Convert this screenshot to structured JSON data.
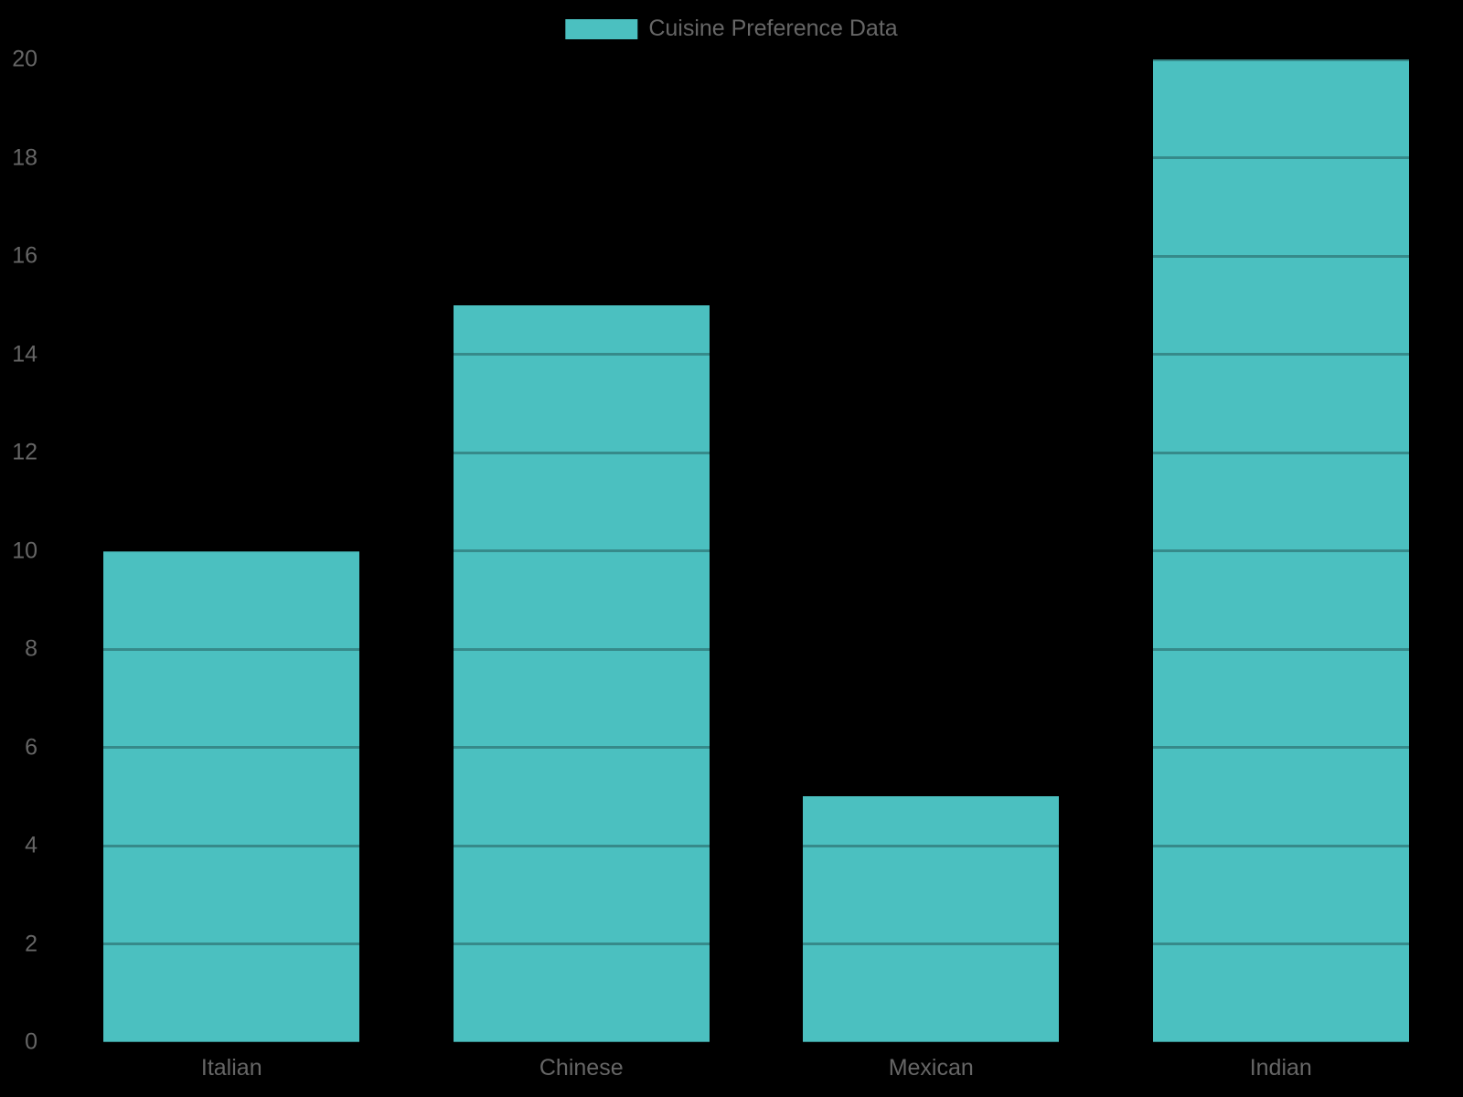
{
  "legend": {
    "label": "Cuisine Preference Data"
  },
  "colors": {
    "background": "#000000",
    "bar": "#4bc0c0",
    "grid_overlay": "rgba(0,0,0,0.28)",
    "axis_text": "#666666",
    "legend_text": "#666666"
  },
  "chart_data": {
    "type": "bar",
    "title": "",
    "categories": [
      "Italian",
      "Chinese",
      "Mexican",
      "Indian"
    ],
    "series": [
      {
        "name": "Cuisine Preference Data",
        "values": [
          10,
          15,
          5,
          20
        ],
        "color": "#4bc0c0"
      }
    ],
    "xlabel": "",
    "ylabel": "",
    "ylim": [
      0,
      20
    ],
    "yticks": [
      0,
      2,
      4,
      6,
      8,
      10,
      12,
      14,
      16,
      18,
      20
    ],
    "grid": "horizontal",
    "legend_position": "top-center",
    "plot_background": "#000000"
  }
}
